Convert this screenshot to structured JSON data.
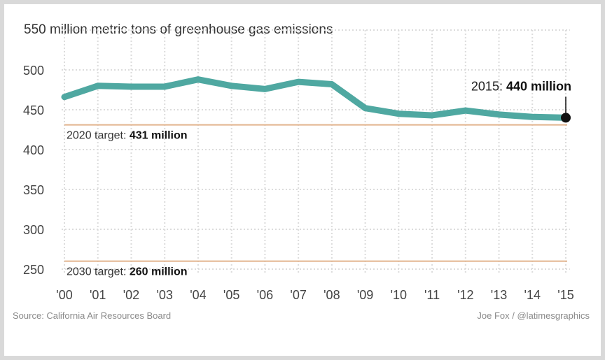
{
  "chart_data": {
    "type": "line",
    "title": "550 million metric tons of greenhouse gas emissions",
    "categories": [
      "'00",
      "'01",
      "'02",
      "'03",
      "'04",
      "'05",
      "'06",
      "'07",
      "'08",
      "'09",
      "'10",
      "'11",
      "'12",
      "'13",
      "'14",
      "'15"
    ],
    "series": [
      {
        "values": [
          466,
          480,
          479,
          479,
          488,
          480,
          476,
          485,
          482,
          452,
          445,
          443,
          449,
          444,
          441,
          440
        ]
      }
    ],
    "ylim": [
      250,
      550
    ],
    "yticks": [
      500,
      450,
      400,
      350,
      300,
      250
    ],
    "grid": true,
    "reference_lines": [
      {
        "value": 431,
        "label_prefix": "2020 target: ",
        "label_value": "431 million"
      },
      {
        "value": 260,
        "label_prefix": "2030 target: ",
        "label_value": "260 million"
      }
    ],
    "endpoint_callout": {
      "prefix": "2015: ",
      "value_label": "440 million"
    },
    "colors": {
      "line": "#4fa8a1",
      "target": "#e2b48e",
      "grid": "#dcdcdc",
      "dot": "#111111"
    }
  },
  "footer": {
    "source": "Source: California Air Resources Board",
    "credit": "Joe Fox / @latimesgraphics"
  }
}
